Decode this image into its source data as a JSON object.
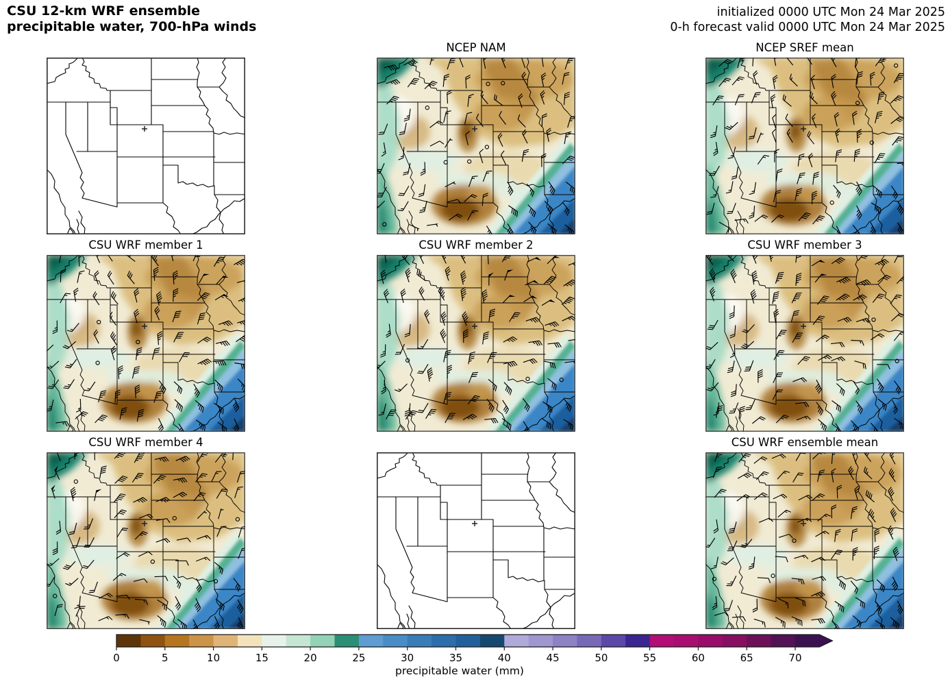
{
  "header": {
    "title_line1": "CSU 12-km WRF ensemble",
    "title_line2": "precipitable water, 700-hPa winds",
    "init_text": "initialized 0000 UTC Mon 24 Mar 2025",
    "valid_text": "0-h forecast valid 0000 UTC Mon 24 Mar 2025"
  },
  "panels": [
    {
      "title": "",
      "type": "blank"
    },
    {
      "title": "NCEP NAM",
      "type": "data"
    },
    {
      "title": "NCEP SREF mean",
      "type": "data"
    },
    {
      "title": "CSU WRF member 1",
      "type": "data"
    },
    {
      "title": "CSU WRF member 2",
      "type": "data"
    },
    {
      "title": "CSU WRF member 3",
      "type": "data"
    },
    {
      "title": "CSU WRF member 4",
      "type": "data"
    },
    {
      "title": "",
      "type": "blank"
    },
    {
      "title": "CSU WRF ensemble mean",
      "type": "data"
    }
  ],
  "colorbar": {
    "label": "precipitable water (mm)",
    "ticks": [
      0,
      5,
      10,
      15,
      20,
      25,
      30,
      35,
      40,
      45,
      50,
      55,
      60,
      65,
      70
    ],
    "min": 0,
    "solid_max": 55,
    "arrow_max": 72.5,
    "segment_step": 2.5,
    "segment_colors": [
      "#5c3509",
      "#8f5210",
      "#b5761f",
      "#cc9448",
      "#e0b478",
      "#f3e3bc",
      "#e7f3ea",
      "#c5e6d3",
      "#93d2b7",
      "#2a8f74",
      "#5e9cd2",
      "#4a8cc6",
      "#3a7cb8",
      "#2c6dab",
      "#22609c",
      "#16496f",
      "#b0aada",
      "#9f97d0",
      "#8d82c4",
      "#7769b6",
      "#5c48a6",
      "#3b2691"
    ],
    "over_colors": [
      "#b20e75",
      "#a80d70",
      "#990c69",
      "#860f61",
      "#6c1059",
      "#521255",
      "#3c1151"
    ]
  },
  "map": {
    "marker_symbol": "+",
    "colors": {
      "base": "#f1ebd4",
      "tan": "#dcbf80",
      "tan_dark": "#c79a50",
      "brown": "#a8762c",
      "brown_dark": "#7d4c10",
      "cream": "#ead9ae",
      "white": "#fbfaf3",
      "mint": "#def0e4",
      "teal_light": "#a3dac5",
      "teal": "#55b295",
      "teal_dark": "#17816a",
      "teal_deep": "#0b5f4e",
      "blue_light": "#8fc0e0",
      "blue": "#3b86c6",
      "blue_dark": "#1c5f9e",
      "blue_deep": "#123f6e",
      "border": "#000000",
      "barb": "#000000"
    }
  }
}
